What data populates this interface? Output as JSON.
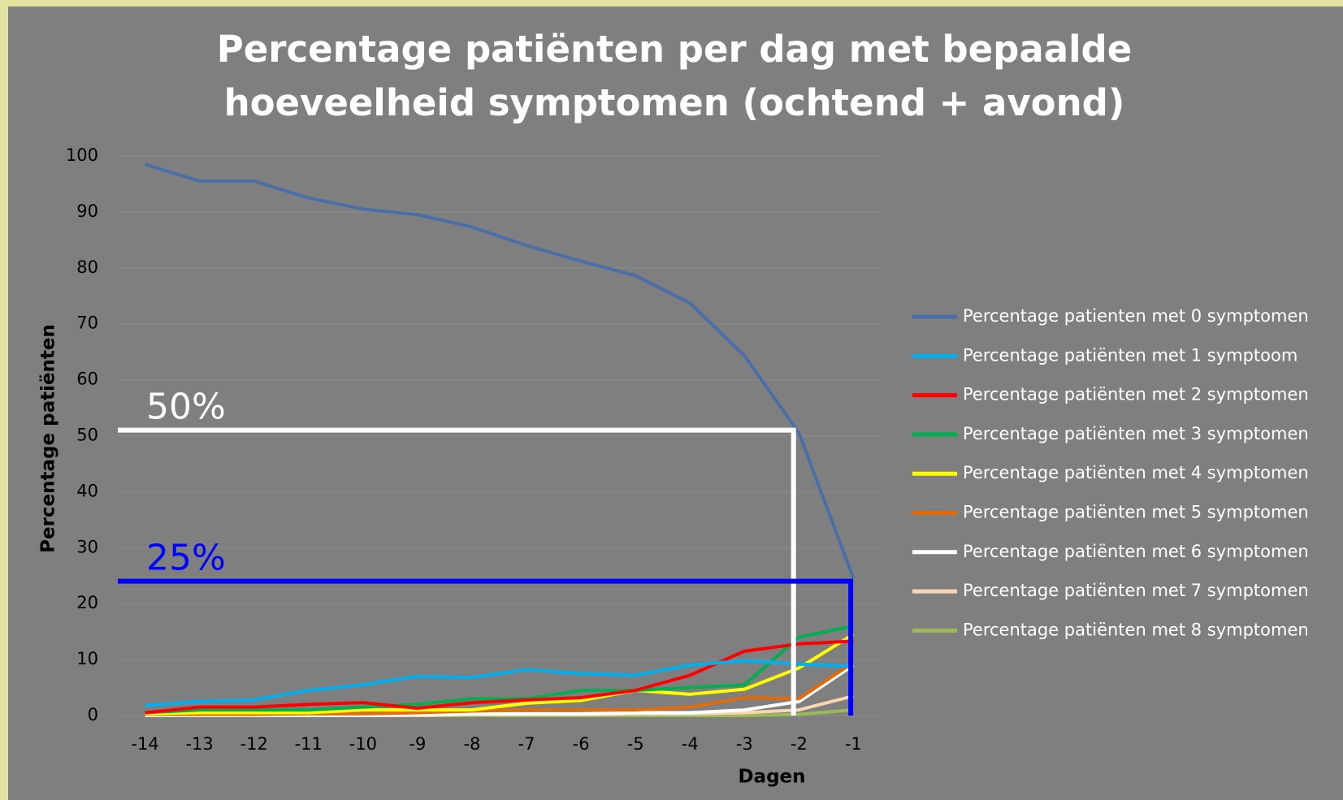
{
  "chart_data": {
    "type": "line",
    "title": "Percentage patiënten per dag met bepaalde hoeveelheid symptomen (ochtend + avond)",
    "xlabel": "Dagen",
    "ylabel": "Percentage patiënten",
    "x": [
      -14,
      -13,
      -12,
      -11,
      -10,
      -9,
      -8,
      -7,
      -6,
      -5,
      -4,
      -3,
      -2,
      -1
    ],
    "xlim": [
      -14.5,
      -0.5
    ],
    "xticks": [
      -14,
      -13,
      -12,
      -11,
      -10,
      -9,
      -8,
      -7,
      -6,
      -5,
      -4,
      -3,
      -2,
      -1
    ],
    "ylim": [
      0,
      100
    ],
    "yticks": [
      0,
      10,
      20,
      30,
      40,
      50,
      60,
      70,
      80,
      90,
      100
    ],
    "grid": true,
    "legend": "right",
    "series": [
      {
        "name": "Percentage patienten met 0 symptomen",
        "color": "#4a6fa8",
        "values": [
          98.5,
          95.5,
          95.5,
          92.5,
          90.5,
          89.5,
          87.3,
          84,
          81.2,
          78.6,
          73.7,
          64.3,
          50.5,
          24.5
        ]
      },
      {
        "name": "Percentage patiënten met 1 symptoom",
        "color": "#00b0f0",
        "values": [
          1.8,
          2.5,
          2.8,
          4.5,
          5.5,
          7,
          6.8,
          8.2,
          7.5,
          7.2,
          9,
          9.8,
          9.2,
          8.8
        ]
      },
      {
        "name": "Percentage patiënten met 2 symptomen",
        "color": "#ff0000",
        "values": [
          0.5,
          1.5,
          1.5,
          2,
          2.3,
          1.3,
          2.3,
          2.8,
          3.2,
          4.5,
          7.2,
          11.5,
          12.8,
          13.3
        ]
      },
      {
        "name": "Percentage patiënten met 3 symptomen",
        "color": "#00b050",
        "values": [
          0.5,
          1,
          1,
          1,
          1.5,
          2,
          3,
          3,
          4.5,
          4.5,
          5,
          5.5,
          14,
          16
        ]
      },
      {
        "name": "Percentage patiënten met 4 symptomen",
        "color": "#ffff00",
        "values": [
          0.3,
          0.5,
          0.5,
          0.5,
          1,
          1,
          1,
          2.2,
          2.7,
          4.5,
          3.8,
          4.7,
          8.5,
          14.5
        ]
      },
      {
        "name": "Percentage patiënten met 5 symptomen",
        "color": "#e36c09",
        "values": [
          0.2,
          0.2,
          0.2,
          0.3,
          0.3,
          0.5,
          0.8,
          1,
          1,
          1,
          1.5,
          3.2,
          3,
          9.5
        ]
      },
      {
        "name": "Percentage patiënten met 6 symptomen",
        "color": "#ffffff",
        "values": [
          0,
          0,
          0,
          0,
          0,
          0.2,
          0.3,
          0.3,
          0.3,
          0.5,
          0.5,
          1,
          2.5,
          9
        ]
      },
      {
        "name": "Percentage patiënten met 7 symptomen",
        "color": "#fcd5b4",
        "values": [
          0,
          0,
          0,
          0,
          0,
          0,
          0.2,
          0.2,
          0.2,
          0.3,
          0.3,
          0.5,
          1,
          3.5
        ]
      },
      {
        "name": "Percentage patiënten met 8 symptomen",
        "color": "#9bbb59",
        "values": [
          0,
          0,
          0,
          0,
          0,
          0,
          0,
          0,
          0,
          0,
          0,
          0,
          0.2,
          1
        ]
      }
    ],
    "annotations": [
      {
        "label": "50%",
        "x": -2.1,
        "y": 51,
        "color": "#ffffff"
      },
      {
        "label": "25%",
        "x": -1.05,
        "y": 24,
        "color": "#0000ff"
      }
    ]
  }
}
